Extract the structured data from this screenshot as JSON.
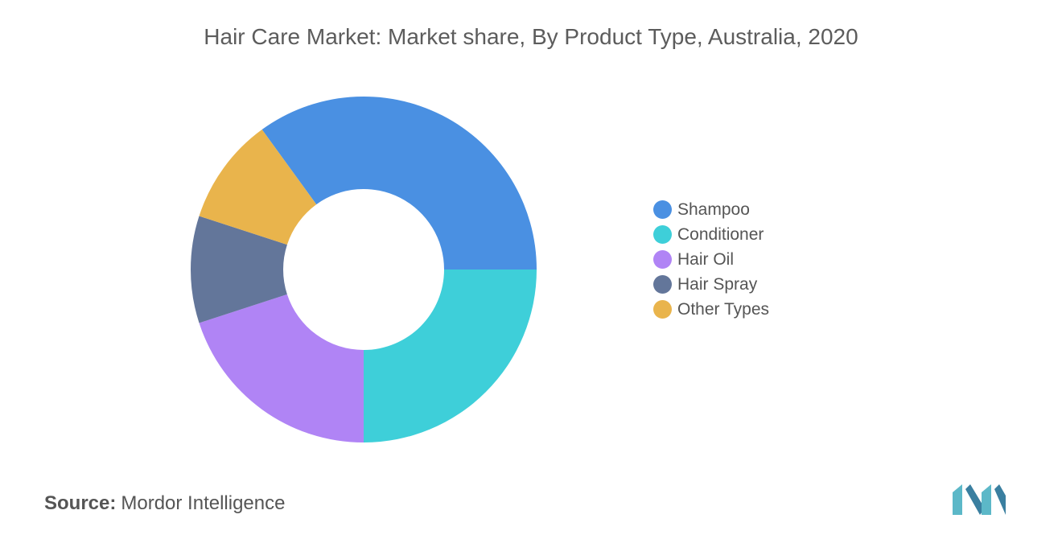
{
  "title": "Hair Care Market: Market share, By Product Type, Australia, 2020",
  "source": {
    "label": "Source:",
    "text": "Mordor Intelligence"
  },
  "logo": {
    "icon": "mordor-intelligence-logo",
    "color": "#5cb8c8"
  },
  "chart_data": {
    "type": "pie",
    "variant": "donut",
    "title": "Hair Care Market: Market share, By Product Type, Australia, 2020",
    "legend_position": "right",
    "categories": [
      "Shampoo",
      "Conditioner",
      "Hair Oil",
      "Hair Spray",
      "Other Types"
    ],
    "values": [
      35,
      25,
      20,
      10,
      10
    ],
    "colors": [
      "#4a90e2",
      "#3ecfd9",
      "#b084f5",
      "#63769a",
      "#e9b44c"
    ]
  }
}
